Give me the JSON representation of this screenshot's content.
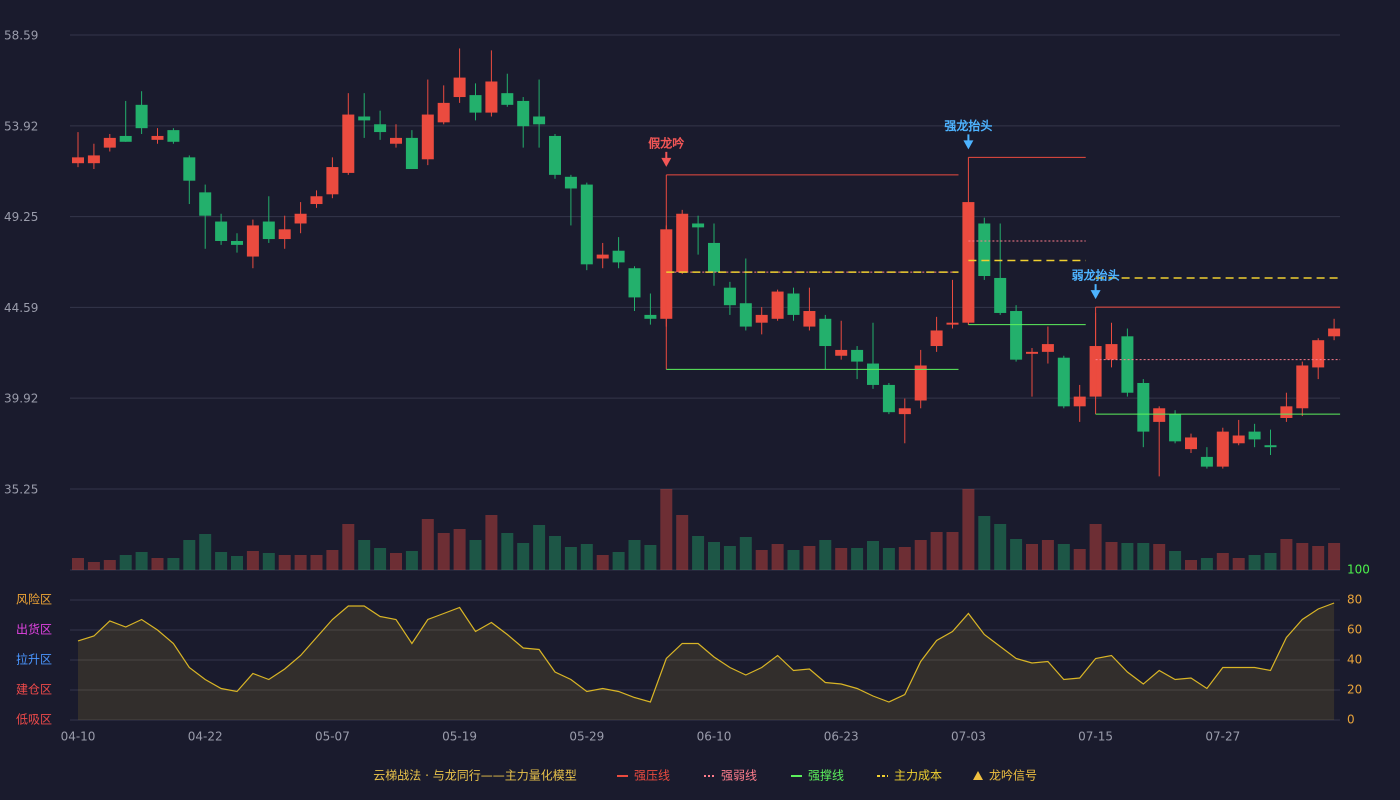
{
  "chart_data": {
    "type": "candlestick",
    "categories": [
      "04-10",
      null,
      null,
      null,
      null,
      null,
      null,
      null,
      "04-22",
      null,
      null,
      null,
      null,
      null,
      null,
      null,
      "05-07",
      null,
      null,
      null,
      null,
      null,
      null,
      null,
      "05-19",
      null,
      null,
      null,
      null,
      null,
      null,
      null,
      "05-29",
      null,
      null,
      null,
      null,
      null,
      null,
      null,
      "06-10",
      null,
      null,
      null,
      null,
      null,
      null,
      null,
      "06-23",
      null,
      null,
      null,
      null,
      null,
      null,
      null,
      "07-03",
      null,
      null,
      null,
      null,
      null,
      null,
      null,
      "07-15",
      null,
      null,
      null,
      null,
      null,
      null,
      null,
      "07-27",
      null,
      null,
      null,
      null,
      null,
      null,
      null
    ],
    "open": [
      52.0,
      52.0,
      52.8,
      53.4,
      55.0,
      53.2,
      53.7,
      52.3,
      50.5,
      49.0,
      48.0,
      47.2,
      49.0,
      48.1,
      48.9,
      49.9,
      50.4,
      51.5,
      54.4,
      54.0,
      53.0,
      53.3,
      52.2,
      54.1,
      55.4,
      55.5,
      54.6,
      55.6,
      55.2,
      54.4,
      53.4,
      51.3,
      50.9,
      47.1,
      47.5,
      46.6,
      44.2,
      44.0,
      46.4,
      48.9,
      47.9,
      45.6,
      44.8,
      43.8,
      44.0,
      45.3,
      43.6,
      44.0,
      42.1,
      42.4,
      41.7,
      40.6,
      39.1,
      39.8,
      42.6,
      43.7,
      43.8,
      48.9,
      46.1,
      44.4,
      42.2,
      42.3,
      42.0,
      39.5,
      40.0,
      41.9,
      43.1,
      40.7,
      38.7,
      39.1,
      37.3,
      36.9,
      36.4,
      37.6,
      38.2,
      37.5,
      38.9,
      39.4,
      41.5,
      43.1
    ],
    "close": [
      52.3,
      52.4,
      53.3,
      53.1,
      53.8,
      53.4,
      53.1,
      51.1,
      49.3,
      48.0,
      47.8,
      48.8,
      48.1,
      48.6,
      49.4,
      50.3,
      51.8,
      54.5,
      54.2,
      53.6,
      53.3,
      51.7,
      54.5,
      55.1,
      56.4,
      54.6,
      56.2,
      55.0,
      53.9,
      54.0,
      51.4,
      50.7,
      46.8,
      47.3,
      46.9,
      45.1,
      44.0,
      48.6,
      49.4,
      48.7,
      46.4,
      44.7,
      43.6,
      44.2,
      45.4,
      44.2,
      44.4,
      42.6,
      42.4,
      41.8,
      40.6,
      39.2,
      39.4,
      41.6,
      43.4,
      43.8,
      50.0,
      46.2,
      44.3,
      41.9,
      42.3,
      42.7,
      39.5,
      40.0,
      42.6,
      42.7,
      40.2,
      38.2,
      39.4,
      37.7,
      37.9,
      36.4,
      38.2,
      38.0,
      37.8,
      37.4,
      39.5,
      41.6,
      42.9,
      43.5
    ],
    "high": [
      53.6,
      53.0,
      53.5,
      55.2,
      55.7,
      53.8,
      53.8,
      52.4,
      50.9,
      49.4,
      48.4,
      49.1,
      50.3,
      49.3,
      50.0,
      50.6,
      52.3,
      55.6,
      55.6,
      54.7,
      54.0,
      53.7,
      56.3,
      56.0,
      57.9,
      56.1,
      57.8,
      56.6,
      55.4,
      56.3,
      53.5,
      51.4,
      51.0,
      47.9,
      48.2,
      46.7,
      45.3,
      48.8,
      49.6,
      49.3,
      48.9,
      45.9,
      47.1,
      44.6,
      45.5,
      45.6,
      45.6,
      44.2,
      43.9,
      42.6,
      43.8,
      40.7,
      39.9,
      42.4,
      44.1,
      46.0,
      50.0,
      49.2,
      48.9,
      44.7,
      42.5,
      43.6,
      42.1,
      40.6,
      44.3,
      43.8,
      43.5,
      40.9,
      39.5,
      39.3,
      38.1,
      37.4,
      38.4,
      38.8,
      38.6,
      38.3,
      40.2,
      41.8,
      43.0,
      44.0
    ],
    "low": [
      51.8,
      51.7,
      52.6,
      53.1,
      53.5,
      53.0,
      53.0,
      49.9,
      47.6,
      47.8,
      47.4,
      46.6,
      47.9,
      47.6,
      48.4,
      49.7,
      50.2,
      51.4,
      53.3,
      53.2,
      52.8,
      51.7,
      51.9,
      54.0,
      55.1,
      54.2,
      54.4,
      54.9,
      52.8,
      52.8,
      51.2,
      48.8,
      46.5,
      46.6,
      46.6,
      44.4,
      43.7,
      43.6,
      46.3,
      47.3,
      45.7,
      44.2,
      43.4,
      43.2,
      43.9,
      43.9,
      43.4,
      41.4,
      41.9,
      40.9,
      40.4,
      39.1,
      37.6,
      39.4,
      42.3,
      43.5,
      43.7,
      46.0,
      44.2,
      41.8,
      40.0,
      41.7,
      39.4,
      38.7,
      40.0,
      41.5,
      40.0,
      37.4,
      35.9,
      37.6,
      37.1,
      36.3,
      36.3,
      37.5,
      37.4,
      37.0,
      38.7,
      39.0,
      40.9,
      42.9
    ],
    "ylim": [
      35.25,
      58.59
    ],
    "yticks": [
      35.25,
      39.92,
      44.59,
      49.25,
      53.92,
      58.59
    ],
    "grid": true,
    "up_color": "#eb4b3f",
    "down_color": "#23b06c",
    "volume": {
      "values": [
        12,
        8,
        10,
        15,
        18,
        12,
        12,
        30,
        36,
        18,
        14,
        19,
        17,
        15,
        15,
        15,
        20,
        46,
        30,
        22,
        17,
        19,
        51,
        37,
        41,
        30,
        55,
        37,
        27,
        45,
        34,
        23,
        26,
        15,
        18,
        30,
        25,
        81,
        55,
        34,
        28,
        24,
        33,
        20,
        26,
        20,
        24,
        30,
        22,
        22,
        29,
        22,
        23,
        30,
        38,
        38,
        81,
        54,
        46,
        31,
        26,
        30,
        26,
        21,
        46,
        28,
        27,
        27,
        26,
        19,
        10,
        12,
        17,
        12,
        15,
        17,
        31,
        27,
        24,
        27
      ],
      "ylim": [
        0,
        81
      ]
    },
    "oscillator": {
      "values": [
        52.7,
        56,
        66,
        62,
        67,
        60,
        51,
        35,
        27,
        21,
        19,
        31,
        27,
        34,
        43,
        55,
        67,
        76,
        76,
        69,
        67,
        51,
        67,
        71,
        75,
        59,
        65,
        57,
        48,
        47,
        32,
        27,
        19,
        21,
        19,
        15,
        12,
        41,
        51,
        51,
        42,
        35,
        30,
        35,
        43,
        33,
        34,
        25,
        24,
        21,
        16,
        12,
        17,
        39,
        53,
        59,
        71,
        57,
        49,
        41,
        38,
        39,
        27,
        28,
        41,
        43,
        32,
        24,
        33,
        27,
        28,
        21,
        35,
        35,
        35,
        33,
        55,
        67,
        74,
        78
      ],
      "ylim": [
        0,
        100
      ],
      "yticks": [
        0,
        20,
        40,
        60,
        80,
        100
      ],
      "ytick_colors": [
        "#e8a33a",
        "#e8a33a",
        "#e8a33a",
        "#e8a33a",
        "#e8a33a",
        "#4cf04c"
      ],
      "color": "#d9b526",
      "zones": [
        {
          "value": 80,
          "label": "风险区",
          "color": "#f0a535"
        },
        {
          "value": 60,
          "label": "出货区",
          "color": "#e243e2"
        },
        {
          "value": 40,
          "label": "拉升区",
          "color": "#4a96ff"
        },
        {
          "value": 20,
          "label": "建仓区",
          "color": "#ee4a4a"
        },
        {
          "value": 0,
          "label": "低吸区",
          "color": "#ee4a4a"
        }
      ]
    },
    "signals": [
      {
        "label": "假龙吟",
        "index": 37,
        "end": 55,
        "color": "#f25656",
        "resistance": 51.4,
        "midline": 46.4,
        "support": 41.4,
        "cost": 46.4
      },
      {
        "label": "强龙抬头",
        "index": 56,
        "end": 63,
        "color": "#4db3ff",
        "resistance": 52.3,
        "midline": 48.0,
        "support": 43.7,
        "cost": 47.0
      },
      {
        "label": "弱龙抬头",
        "index": 64,
        "end": 79,
        "color": "#4db3ff",
        "resistance": 44.6,
        "midline": 41.9,
        "support": 39.1,
        "cost": 46.1
      }
    ],
    "legend": {
      "title": "云梯战法 · 与龙同行——主力量化模型",
      "color": "#e8c24a",
      "items": [
        {
          "name": "强压线",
          "color": "#eb4b3f",
          "style": "solid"
        },
        {
          "name": "强弱线",
          "color": "#ff7d8c",
          "style": "dotted"
        },
        {
          "name": "强撑线",
          "color": "#5cf05c",
          "style": "solid"
        },
        {
          "name": "主力成本",
          "color": "#f0d030",
          "style": "dashed"
        },
        {
          "name": "龙吟信号",
          "color": "#f0c040",
          "style": "triangle"
        }
      ]
    }
  }
}
